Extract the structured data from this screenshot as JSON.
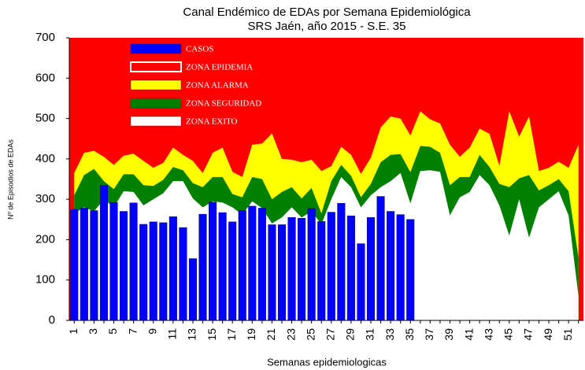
{
  "chart_data": {
    "type": "endemic-channel",
    "title": "Canal Endémico de EDAs por Semana Epidemiológica",
    "subtitle": "SRS Jaén, año 2015 - S.E. 35",
    "x_label": "Semanas epidemiologicas",
    "y_label": "Nº de Episodios de EDAs",
    "categories": [
      1,
      null,
      3,
      null,
      5,
      null,
      7,
      null,
      9,
      null,
      11,
      null,
      13,
      null,
      15,
      null,
      17,
      null,
      19,
      null,
      21,
      null,
      23,
      null,
      25,
      null,
      27,
      null,
      29,
      null,
      31,
      null,
      33,
      null,
      35,
      null,
      37,
      null,
      39,
      null,
      41,
      null,
      43,
      null,
      45,
      null,
      47,
      null,
      49,
      null,
      51,
      null
    ],
    "ylim": [
      0,
      700
    ],
    "yticks": [
      0,
      100,
      200,
      300,
      400,
      500,
      600,
      700
    ],
    "series": [
      {
        "name": "CASOS",
        "type": "bar",
        "color": "#0000ff",
        "values": [
          275,
          278,
          272,
          335,
          292,
          270,
          291,
          238,
          244,
          242,
          257,
          230,
          153,
          263,
          293,
          267,
          244,
          272,
          283,
          278,
          237,
          237,
          255,
          253,
          277,
          245,
          268,
          290,
          259,
          190,
          255,
          307,
          270,
          262,
          250,
          null,
          null,
          null,
          null,
          null,
          null,
          null,
          null,
          null,
          null,
          null,
          null,
          null,
          null,
          null,
          null,
          null
        ]
      },
      {
        "name": "ZONA EPIDEMIA",
        "type": "fill-top",
        "color": "#ff0000"
      },
      {
        "name": "ZONA ALARMA",
        "type": "area",
        "color": "#ffff00",
        "values": [
          365,
          415,
          420,
          405,
          385,
          408,
          413,
          395,
          378,
          390,
          428,
          410,
          395,
          365,
          415,
          428,
          368,
          355,
          435,
          438,
          463,
          400,
          398,
          392,
          398,
          370,
          382,
          430,
          410,
          363,
          403,
          478,
          505,
          500,
          458,
          518,
          498,
          488,
          435,
          405,
          428,
          475,
          462,
          383,
          518,
          455,
          505,
          370,
          378,
          393,
          378,
          435
        ]
      },
      {
        "name": "ZONA SEGURIDAD",
        "type": "area",
        "color": "#008000",
        "values": [
          310,
          360,
          375,
          345,
          325,
          362,
          362,
          335,
          333,
          348,
          380,
          372,
          340,
          330,
          355,
          355,
          313,
          305,
          355,
          350,
          300,
          318,
          330,
          302,
          328,
          265,
          345,
          385,
          358,
          305,
          338,
          392,
          410,
          412,
          367,
          432,
          430,
          415,
          335,
          355,
          355,
          410,
          380,
          338,
          330,
          352,
          360,
          322,
          335,
          350,
          320,
          155
        ]
      },
      {
        "name": "ZONA EXITO",
        "type": "area",
        "color": "#ffffff",
        "values": [
          265,
          280,
          270,
          300,
          280,
          320,
          318,
          285,
          300,
          315,
          345,
          345,
          302,
          280,
          295,
          292,
          280,
          262,
          295,
          278,
          240,
          255,
          280,
          255,
          270,
          238,
          300,
          355,
          330,
          280,
          310,
          330,
          345,
          365,
          290,
          370,
          372,
          368,
          260,
          305,
          318,
          360,
          335,
          285,
          210,
          300,
          205,
          280,
          300,
          320,
          260,
          60
        ]
      }
    ]
  }
}
